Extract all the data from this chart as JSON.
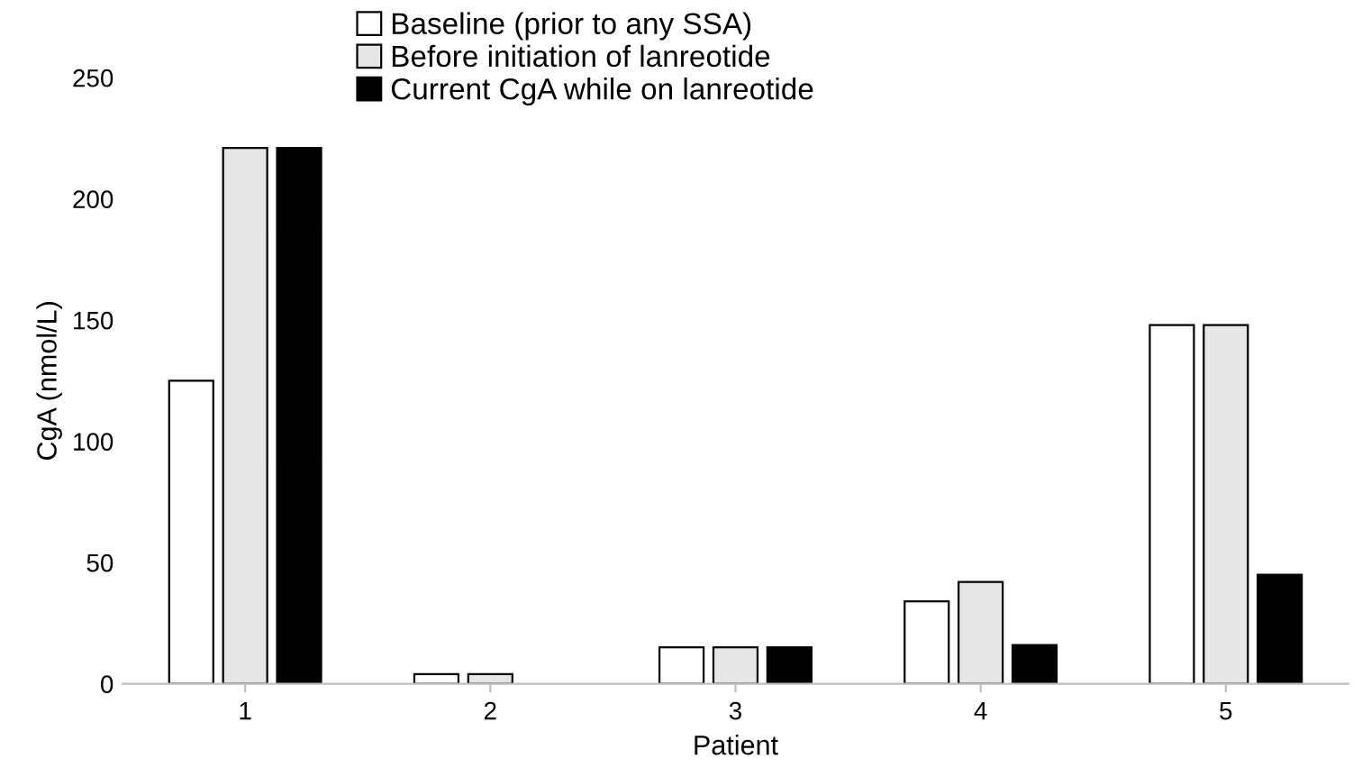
{
  "chart_data": {
    "type": "bar",
    "xlabel": "Patient",
    "ylabel": "CgA (nmol/L)",
    "categories": [
      "1",
      "2",
      "3",
      "4",
      "5"
    ],
    "series": [
      {
        "name": "Baseline (prior to any SSA)",
        "color": "#ffffff",
        "values": [
          125,
          4,
          15,
          34,
          148
        ]
      },
      {
        "name": "Before initiation of lanreotide",
        "color": "#e6e6e6",
        "values": [
          221,
          4,
          15,
          42,
          148
        ]
      },
      {
        "name": "Current CgA while on lanreotide",
        "color": "#000000",
        "values": [
          221,
          null,
          15,
          16,
          45
        ]
      }
    ],
    "ylim": [
      0,
      250
    ],
    "yticks": [
      0,
      50,
      100,
      150,
      200,
      250
    ],
    "grid": false,
    "legend": "top"
  }
}
